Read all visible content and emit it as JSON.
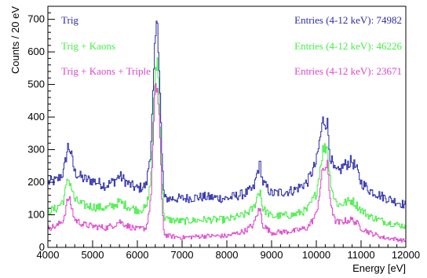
{
  "chart_data": {
    "type": "line",
    "style": "step-histogram",
    "xlabel": "Energy [eV]",
    "ylabel": "Counts / 20 eV",
    "xlim": [
      4000,
      12000
    ],
    "ylim": [
      0,
      740
    ],
    "xticks": [
      4000,
      5000,
      6000,
      7000,
      8000,
      9000,
      10000,
      11000,
      12000
    ],
    "yticks": [
      0,
      100,
      200,
      300,
      400,
      500,
      600,
      700
    ],
    "grid": false,
    "legend_position": "top-left",
    "series": [
      {
        "name": "Trig",
        "color": "#2c2ca8",
        "stats": "Entries (4-12 keV): 74982",
        "x": [
          4000,
          4200,
          4350,
          4450,
          4500,
          4600,
          4800,
          5000,
          5300,
          5500,
          5600,
          5800,
          6000,
          6200,
          6300,
          6400,
          6450,
          6500,
          6550,
          6600,
          6700,
          7000,
          7500,
          8000,
          8400,
          8600,
          8700,
          8750,
          8800,
          9000,
          9500,
          9800,
          10000,
          10150,
          10250,
          10300,
          10400,
          10500,
          10600,
          10800,
          10900,
          11000,
          11200,
          11500,
          11800,
          12000
        ],
        "y": [
          200,
          205,
          230,
          310,
          300,
          230,
          210,
          205,
          190,
          205,
          220,
          195,
          180,
          190,
          300,
          630,
          700,
          520,
          280,
          150,
          150,
          150,
          155,
          150,
          165,
          180,
          240,
          255,
          200,
          165,
          175,
          200,
          260,
          390,
          380,
          290,
          235,
          230,
          250,
          265,
          240,
          200,
          175,
          155,
          140,
          130
        ]
      },
      {
        "name": "Trig + Kaons",
        "color": "#44ee44",
        "stats": "Entries (4-12 keV): 46226",
        "x": [
          4000,
          4200,
          4350,
          4450,
          4500,
          4600,
          4800,
          5000,
          5300,
          5500,
          5600,
          5800,
          6000,
          6200,
          6300,
          6400,
          6450,
          6500,
          6550,
          6600,
          6700,
          7000,
          7500,
          8000,
          8400,
          8600,
          8700,
          8750,
          8800,
          9000,
          9500,
          9800,
          10000,
          10150,
          10250,
          10300,
          10400,
          10500,
          10600,
          10800,
          10900,
          11000,
          11200,
          11500,
          11800,
          12000
        ],
        "y": [
          110,
          120,
          145,
          210,
          200,
          145,
          130,
          125,
          120,
          130,
          140,
          125,
          115,
          120,
          200,
          540,
          575,
          440,
          200,
          90,
          85,
          80,
          85,
          85,
          100,
          120,
          165,
          175,
          120,
          95,
          100,
          115,
          165,
          300,
          310,
          220,
          150,
          130,
          135,
          145,
          130,
          115,
          95,
          80,
          70,
          65
        ]
      },
      {
        "name": "Trig + Kaons + Triple",
        "color": "#dd44cc",
        "stats": "Entries (4-12 keV): 23671",
        "x": [
          4000,
          4200,
          4350,
          4450,
          4500,
          4600,
          4800,
          5000,
          5300,
          5500,
          5600,
          5800,
          6000,
          6200,
          6300,
          6400,
          6450,
          6500,
          6550,
          6600,
          6700,
          7000,
          7500,
          8000,
          8400,
          8600,
          8700,
          8750,
          8800,
          9000,
          9500,
          9800,
          10000,
          10150,
          10250,
          10300,
          10400,
          10500,
          10600,
          10800,
          10900,
          11000,
          11200,
          11500,
          11800,
          12000
        ],
        "y": [
          60,
          65,
          85,
          150,
          140,
          85,
          70,
          65,
          60,
          70,
          80,
          65,
          55,
          60,
          140,
          480,
          490,
          380,
          140,
          40,
          35,
          30,
          35,
          35,
          50,
          70,
          110,
          115,
          70,
          45,
          50,
          60,
          100,
          240,
          250,
          160,
          85,
          75,
          80,
          85,
          75,
          60,
          45,
          30,
          25,
          20
        ]
      }
    ]
  }
}
